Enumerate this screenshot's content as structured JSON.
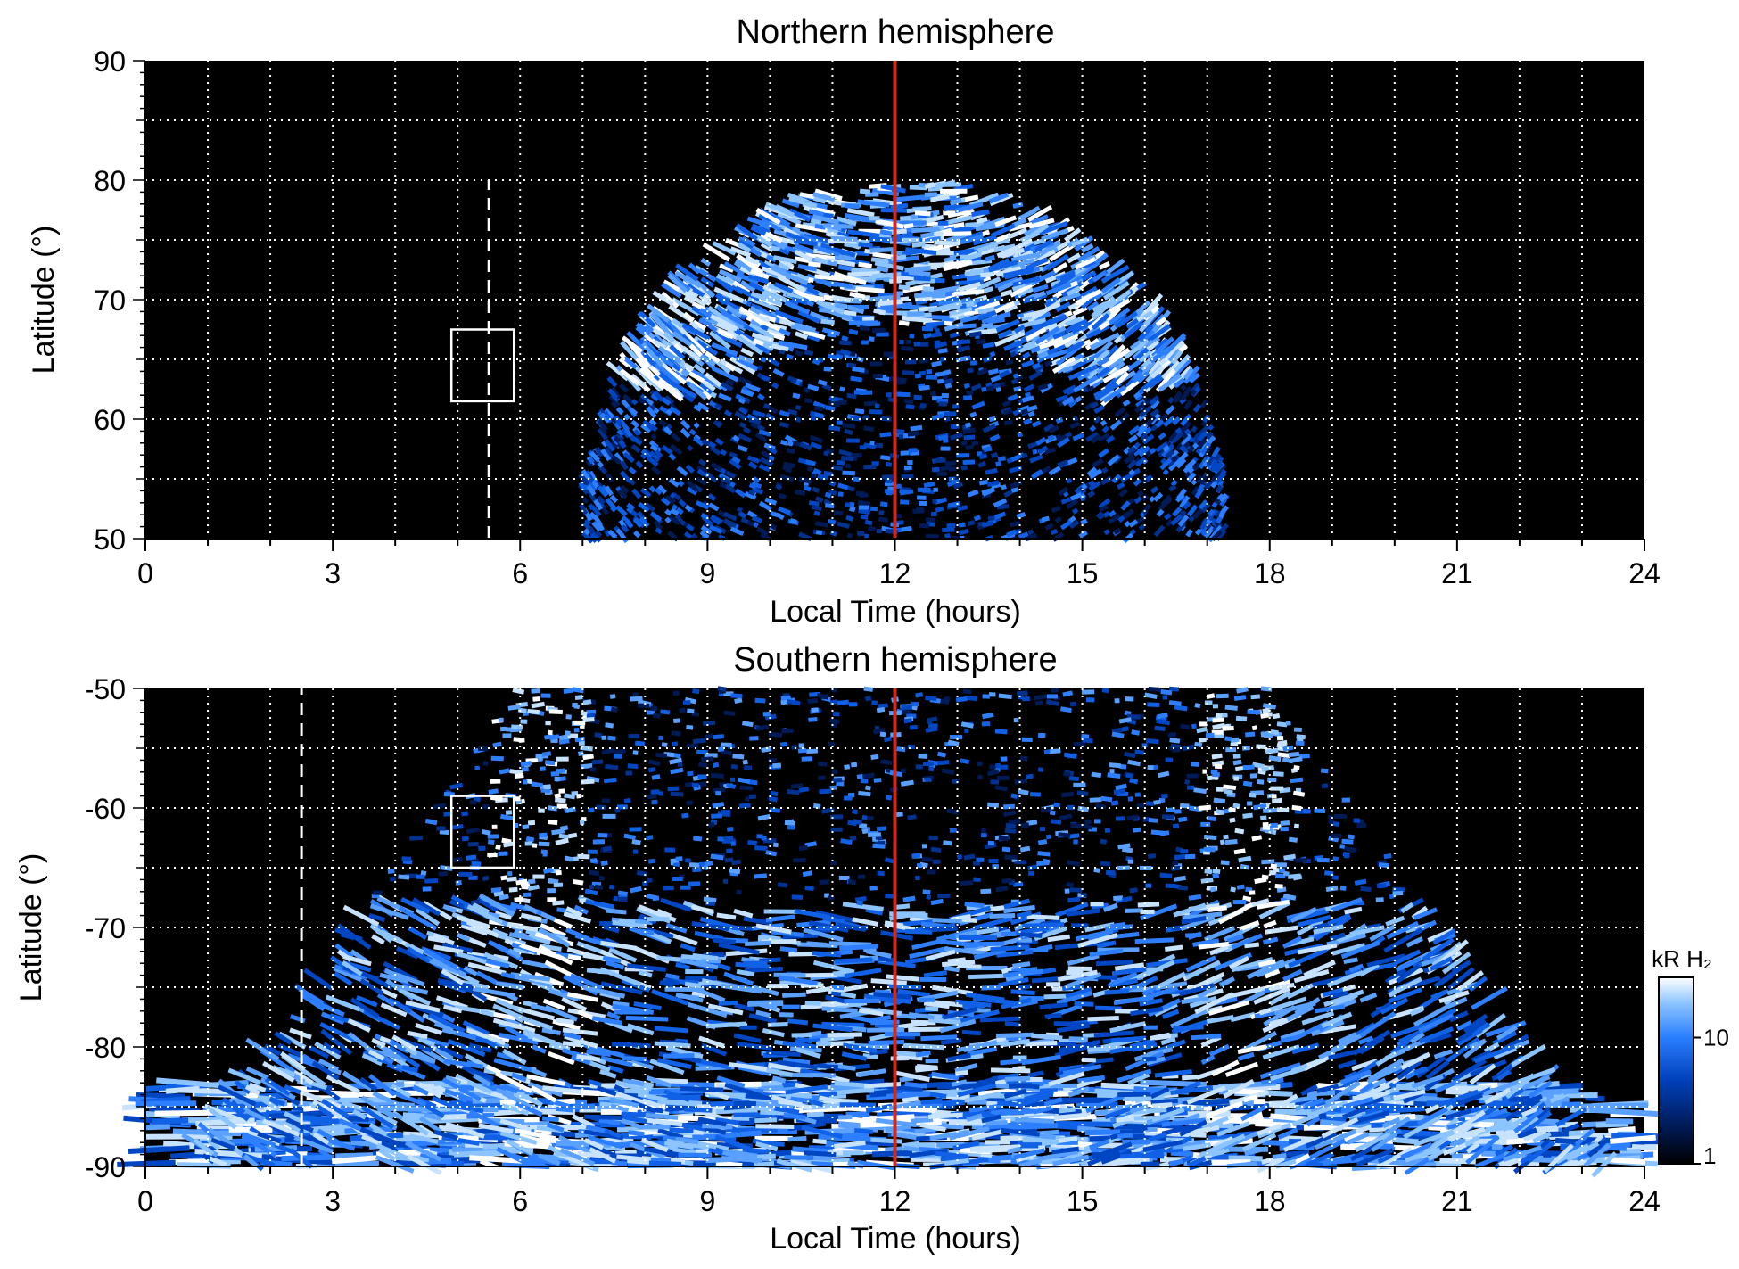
{
  "chart_data": [
    {
      "type": "heatmap",
      "title": "Northern hemisphere",
      "xlabel": "Local Time (hours)",
      "ylabel": "Latitude (°)",
      "xlim": [
        0,
        24
      ],
      "ylim": [
        50,
        90
      ],
      "xticks": [
        "0",
        "3",
        "6",
        "9",
        "12",
        "15",
        "18",
        "21",
        "24"
      ],
      "yticks": [
        "50",
        "60",
        "70",
        "80",
        "90"
      ],
      "grid": true,
      "background": "#000000",
      "emission_region": {
        "lt_min": 7.0,
        "lt_max": 17.3,
        "lat_max": 80,
        "bright_oval_lat": [
          64,
          76
        ],
        "dim_interior_lat_max": 68
      },
      "markers": {
        "noon_line": {
          "lt": 12,
          "color": "#cc2a1e"
        },
        "dashed_line": {
          "lt": 5.5,
          "lat_range": [
            50,
            80
          ],
          "color": "#ffffff"
        },
        "box": {
          "lt_range": [
            4.9,
            5.9
          ],
          "lat_range": [
            61.5,
            67.5
          ],
          "color": "#ffffff"
        }
      }
    },
    {
      "type": "heatmap",
      "title": "Southern hemisphere",
      "xlabel": "Local Time (hours)",
      "ylabel": "Latitude (°)",
      "xlim": [
        0,
        24
      ],
      "ylim": [
        -90,
        -50
      ],
      "xticks": [
        "0",
        "3",
        "6",
        "9",
        "12",
        "15",
        "18",
        "21",
        "24"
      ],
      "yticks": [
        "-90",
        "-80",
        "-70",
        "-60",
        "-50"
      ],
      "grid": true,
      "background": "#000000",
      "emission_region": {
        "bright_bands_lt": [
          6.3,
          17.7
        ],
        "polar_cap_lat_min": -90,
        "polar_cap_lat_max": -83
      },
      "markers": {
        "noon_line": {
          "lt": 12,
          "color": "#cc2a1e"
        },
        "dashed_line": {
          "lt": 2.5,
          "lat_range": [
            -90,
            -50
          ],
          "color": "#ffffff"
        },
        "box": {
          "lt_range": [
            4.9,
            5.9
          ],
          "lat_range": [
            -65,
            -59
          ],
          "color": "#ffffff"
        }
      }
    }
  ],
  "colorbar": {
    "label": "kR H₂",
    "ticks": [
      "10",
      "1"
    ],
    "tick_values": [
      10,
      1
    ],
    "range": [
      1,
      30
    ],
    "scale": "log",
    "colors": [
      "#000000",
      "#001a55",
      "#0040bb",
      "#2a7fff",
      "#8cc4ff",
      "#ffffff"
    ]
  }
}
